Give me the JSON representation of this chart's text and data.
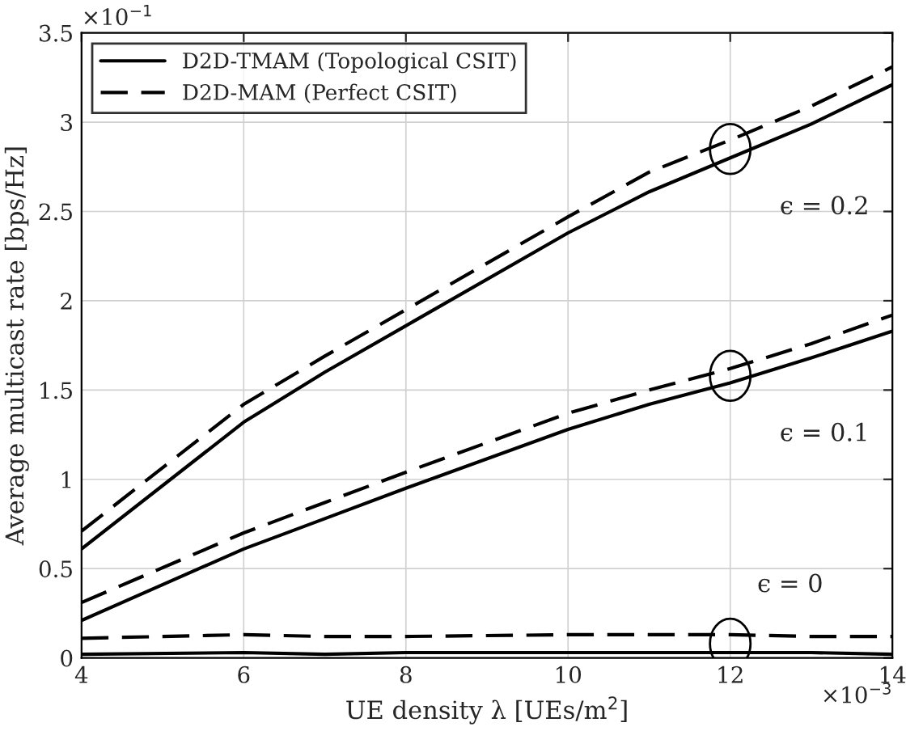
{
  "chart_data": {
    "type": "line",
    "xlabel": "UE density λ [UEs/m$^{2}$]",
    "ylabel": "Average multicast rate [bps/Hz]",
    "x": [
      4,
      6,
      7,
      8,
      10,
      11,
      12,
      13,
      14
    ],
    "series": [
      {
        "name": "D2D-TMAM (Topological CSIT)",
        "color": "#000000",
        "line_style": "solid",
        "values": [
          0.61,
          1.32,
          1.6,
          1.86,
          2.38,
          2.61,
          2.8,
          2.99,
          3.21
        ]
      },
      {
        "name": "D2D-MAM (Perfect CSIT)",
        "color": "#000000",
        "line_style": "dashed",
        "values": [
          0.71,
          1.42,
          1.69,
          1.95,
          2.47,
          2.72,
          2.9,
          3.09,
          3.31
        ]
      },
      {
        "color": "#000000",
        "line_style": "solid",
        "values": [
          0.21,
          0.61,
          0.78,
          0.95,
          1.28,
          1.42,
          1.54,
          1.68,
          1.83
        ]
      },
      {
        "color": "#000000",
        "line_style": "dashed",
        "values": [
          0.31,
          0.7,
          0.87,
          1.04,
          1.37,
          1.5,
          1.62,
          1.76,
          1.92
        ]
      },
      {
        "color": "#000000",
        "line_style": "solid",
        "values": [
          0.02,
          0.03,
          0.02,
          0.03,
          0.03,
          0.03,
          0.03,
          0.03,
          0.02
        ]
      },
      {
        "color": "#000000",
        "line_style": "dashed",
        "values": [
          0.11,
          0.13,
          0.12,
          0.12,
          0.13,
          0.13,
          0.13,
          0.12,
          0.12
        ]
      }
    ],
    "xlim": [
      4,
      14
    ],
    "ylim": [
      0,
      3.5
    ],
    "xticks": [
      4,
      6,
      8,
      10,
      12,
      14
    ],
    "yticks": [
      0,
      0.5,
      1,
      1.5,
      2,
      2.5,
      3,
      3.5
    ],
    "grid": true,
    "legend": "top left",
    "annotations": [
      "ϵ = 0.2",
      "ϵ = 0.1",
      "ϵ = 0",
      "×10$^{−1}$",
      "×10$^{−3}$"
    ]
  }
}
